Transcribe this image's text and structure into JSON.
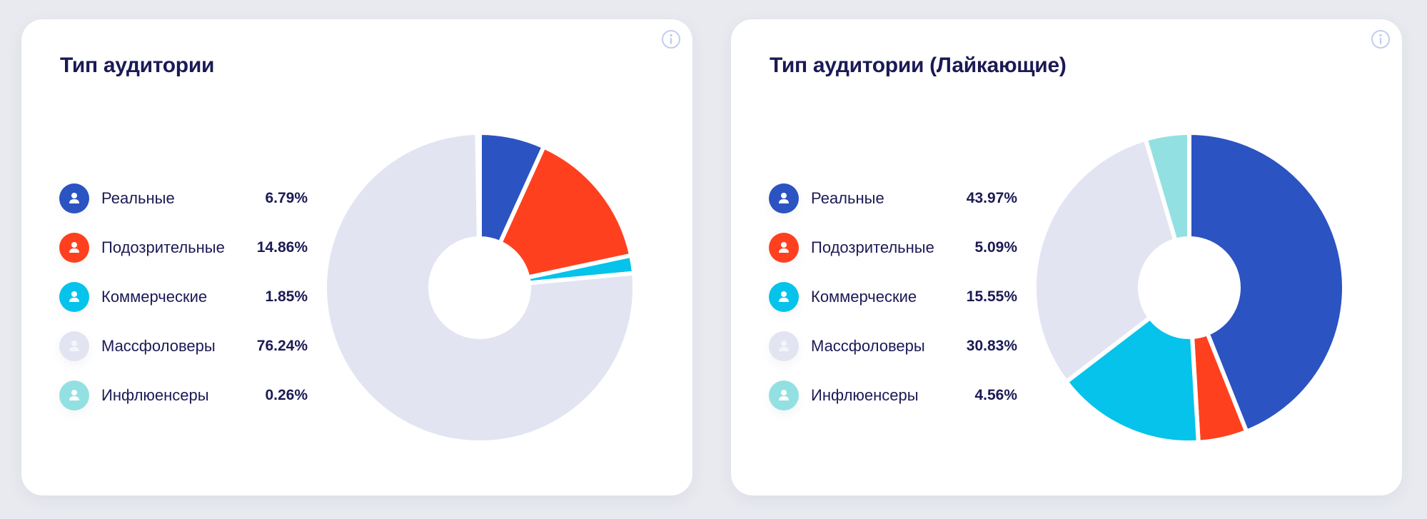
{
  "cards": [
    {
      "title": "Тип аудитории",
      "info_icon": "info-circle-icon",
      "legend": [
        {
          "label": "Реальные",
          "value": "6.79%",
          "color": "#2b53c1",
          "icon": "user-icon"
        },
        {
          "label": "Подозрительные",
          "value": "14.86%",
          "color": "#ff401f",
          "icon": "user-icon"
        },
        {
          "label": "Коммерческие",
          "value": "1.85%",
          "color": "#05c3ea",
          "icon": "user-icon"
        },
        {
          "label": "Массфоловеры",
          "value": "76.24%",
          "color": "#e2e4f2",
          "icon": "user-icon"
        },
        {
          "label": "Инфлюенсеры",
          "value": "0.26%",
          "color": "#93e0e2",
          "icon": "user-icon"
        }
      ]
    },
    {
      "title": "Тип аудитории (Лайкающие)",
      "info_icon": "info-circle-icon",
      "legend": [
        {
          "label": "Реальные",
          "value": "43.97%",
          "color": "#2b53c1",
          "icon": "user-icon"
        },
        {
          "label": "Подозрительные",
          "value": "5.09%",
          "color": "#ff401f",
          "icon": "user-icon"
        },
        {
          "label": "Коммерческие",
          "value": "15.55%",
          "color": "#05c3ea",
          "icon": "user-icon"
        },
        {
          "label": "Массфоловеры",
          "value": "30.83%",
          "color": "#e2e4f2",
          "icon": "user-icon"
        },
        {
          "label": "Инфлюенсеры",
          "value": "4.56%",
          "color": "#93e0e2",
          "icon": "user-icon"
        }
      ]
    }
  ],
  "chart_data": [
    {
      "type": "pie",
      "title": "Тип аудитории",
      "categories": [
        "Реальные",
        "Подозрительные",
        "Коммерческие",
        "Массфоловеры",
        "Инфлюенсеры"
      ],
      "values": [
        6.79,
        14.86,
        1.85,
        76.24,
        0.26
      ],
      "colors": [
        "#2b53c1",
        "#ff401f",
        "#05c3ea",
        "#e2e4f2",
        "#93e0e2"
      ],
      "donut": true,
      "start_angle": "12 o'clock",
      "direction": "clockwise",
      "legend_position": "left"
    },
    {
      "type": "pie",
      "title": "Тип аудитории (Лайкающие)",
      "categories": [
        "Реальные",
        "Подозрительные",
        "Коммерческие",
        "Массфоловеры",
        "Инфлюенсеры"
      ],
      "values": [
        43.97,
        5.09,
        15.55,
        30.83,
        4.56
      ],
      "colors": [
        "#2b53c1",
        "#ff401f",
        "#05c3ea",
        "#e2e4f2",
        "#93e0e2"
      ],
      "donut": true,
      "start_angle": "12 o'clock",
      "direction": "clockwise",
      "legend_position": "left"
    }
  ]
}
